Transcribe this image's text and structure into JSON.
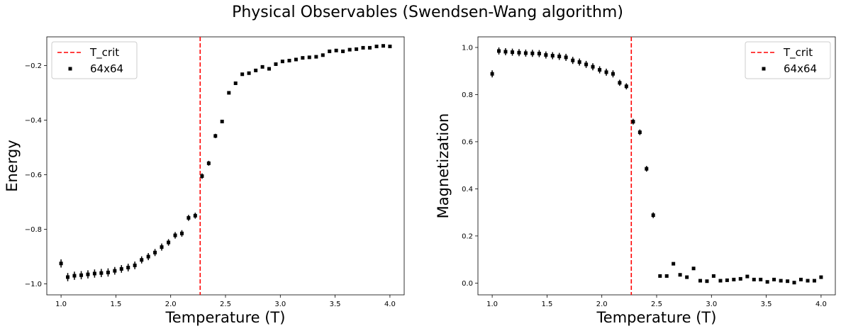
{
  "figure": {
    "title": "Physical Observables (Swendsen-Wang algorithm)"
  },
  "colors": {
    "tcrit_line": "#ff0000",
    "data_marker": "#000000",
    "legend_border": "#cccccc"
  },
  "chart_data": [
    {
      "type": "scatter",
      "xlabel": "Temperature (T)",
      "ylabel": "Energy",
      "xlim": [
        0.87,
        4.13
      ],
      "ylim": [
        -1.04,
        -0.095
      ],
      "xticks": [
        1.0,
        1.5,
        2.0,
        2.5,
        3.0,
        3.5,
        4.0
      ],
      "xtick_labels": [
        "1.0",
        "1.5",
        "2.0",
        "2.5",
        "3.0",
        "3.5",
        "4.0"
      ],
      "yticks": [
        -1.0,
        -0.8,
        -0.6,
        -0.4,
        -0.2
      ],
      "ytick_labels": [
        "−1.0",
        "−0.8",
        "−0.6",
        "−0.4",
        "−0.2"
      ],
      "legend": {
        "position": "upper-left",
        "entries": [
          {
            "label": "T_crit",
            "kind": "line"
          },
          {
            "label": "64x64",
            "kind": "marker"
          }
        ]
      },
      "tcrit": 2.269,
      "series": [
        {
          "name": "64x64",
          "x": [
            1.0,
            1.061,
            1.122,
            1.184,
            1.245,
            1.306,
            1.367,
            1.429,
            1.49,
            1.551,
            1.612,
            1.673,
            1.735,
            1.796,
            1.857,
            1.918,
            1.98,
            2.041,
            2.102,
            2.163,
            2.224,
            2.286,
            2.347,
            2.408,
            2.469,
            2.531,
            2.592,
            2.653,
            2.714,
            2.776,
            2.837,
            2.898,
            2.959,
            3.02,
            3.082,
            3.143,
            3.204,
            3.265,
            3.327,
            3.388,
            3.449,
            3.51,
            3.571,
            3.633,
            3.694,
            3.755,
            3.816,
            3.878,
            3.939,
            4.0
          ],
          "y": [
            -0.925,
            -0.975,
            -0.97,
            -0.968,
            -0.965,
            -0.962,
            -0.96,
            -0.958,
            -0.952,
            -0.945,
            -0.94,
            -0.932,
            -0.912,
            -0.9,
            -0.885,
            -0.865,
            -0.848,
            -0.822,
            -0.815,
            -0.758,
            -0.75,
            -0.605,
            -0.558,
            -0.458,
            -0.405,
            -0.3,
            -0.265,
            -0.232,
            -0.228,
            -0.218,
            -0.205,
            -0.212,
            -0.195,
            -0.185,
            -0.182,
            -0.178,
            -0.172,
            -0.17,
            -0.168,
            -0.162,
            -0.148,
            -0.145,
            -0.148,
            -0.142,
            -0.14,
            -0.135,
            -0.135,
            -0.13,
            -0.128,
            -0.13
          ],
          "yerr": [
            0.015,
            0.015,
            0.015,
            0.015,
            0.015,
            0.015,
            0.015,
            0.015,
            0.014,
            0.014,
            0.014,
            0.014,
            0.013,
            0.013,
            0.013,
            0.013,
            0.012,
            0.012,
            0.012,
            0.011,
            0.011,
            0.01,
            0.009,
            0.008,
            0.006,
            0.005,
            0.004,
            0.004,
            0.004,
            0.003,
            0.003,
            0.003,
            0.003,
            0.003,
            0.003,
            0.003,
            0.003,
            0.003,
            0.003,
            0.003,
            0.003,
            0.003,
            0.003,
            0.003,
            0.003,
            0.003,
            0.003,
            0.003,
            0.003,
            0.003
          ]
        }
      ]
    },
    {
      "type": "scatter",
      "xlabel": "Temperature (T)",
      "ylabel": "Magnetization",
      "xlim": [
        0.87,
        4.13
      ],
      "ylim": [
        -0.05,
        1.045
      ],
      "xticks": [
        1.0,
        1.5,
        2.0,
        2.5,
        3.0,
        3.5,
        4.0
      ],
      "xtick_labels": [
        "1.0",
        "1.5",
        "2.0",
        "2.5",
        "3.0",
        "3.5",
        "4.0"
      ],
      "yticks": [
        0.0,
        0.2,
        0.4,
        0.6,
        0.8,
        1.0
      ],
      "ytick_labels": [
        "0.0",
        "0.2",
        "0.4",
        "0.6",
        "0.8",
        "1.0"
      ],
      "legend": {
        "position": "upper-right",
        "entries": [
          {
            "label": "T_crit",
            "kind": "line"
          },
          {
            "label": "64x64",
            "kind": "marker"
          }
        ]
      },
      "tcrit": 2.269,
      "series": [
        {
          "name": "64x64",
          "x": [
            1.0,
            1.061,
            1.122,
            1.184,
            1.245,
            1.306,
            1.367,
            1.429,
            1.49,
            1.551,
            1.612,
            1.673,
            1.735,
            1.796,
            1.857,
            1.918,
            1.98,
            2.041,
            2.102,
            2.163,
            2.224,
            2.286,
            2.347,
            2.408,
            2.469,
            2.531,
            2.592,
            2.653,
            2.714,
            2.776,
            2.837,
            2.898,
            2.959,
            3.02,
            3.082,
            3.143,
            3.204,
            3.265,
            3.327,
            3.388,
            3.449,
            3.51,
            3.571,
            3.633,
            3.694,
            3.755,
            3.816,
            3.878,
            3.939,
            4.0
          ],
          "y": [
            0.888,
            0.985,
            0.982,
            0.98,
            0.978,
            0.976,
            0.975,
            0.974,
            0.968,
            0.965,
            0.962,
            0.958,
            0.945,
            0.938,
            0.928,
            0.918,
            0.905,
            0.895,
            0.888,
            0.85,
            0.835,
            0.685,
            0.64,
            0.485,
            0.288,
            0.03,
            0.03,
            0.082,
            0.035,
            0.025,
            0.062,
            0.01,
            0.008,
            0.03,
            0.01,
            0.012,
            0.015,
            0.018,
            0.028,
            0.015,
            0.015,
            0.005,
            0.015,
            0.01,
            0.008,
            0.002,
            0.015,
            0.01,
            0.01,
            0.025
          ],
          "yerr": [
            0.015,
            0.015,
            0.015,
            0.015,
            0.015,
            0.015,
            0.015,
            0.015,
            0.015,
            0.015,
            0.015,
            0.015,
            0.015,
            0.015,
            0.015,
            0.015,
            0.015,
            0.015,
            0.015,
            0.013,
            0.013,
            0.012,
            0.012,
            0.012,
            0.012,
            0.005,
            0.005,
            0.005,
            0.005,
            0.005,
            0.005,
            0.005,
            0.005,
            0.005,
            0.005,
            0.005,
            0.005,
            0.005,
            0.005,
            0.005,
            0.005,
            0.005,
            0.005,
            0.005,
            0.005,
            0.005,
            0.005,
            0.005,
            0.005,
            0.005
          ]
        }
      ]
    }
  ]
}
